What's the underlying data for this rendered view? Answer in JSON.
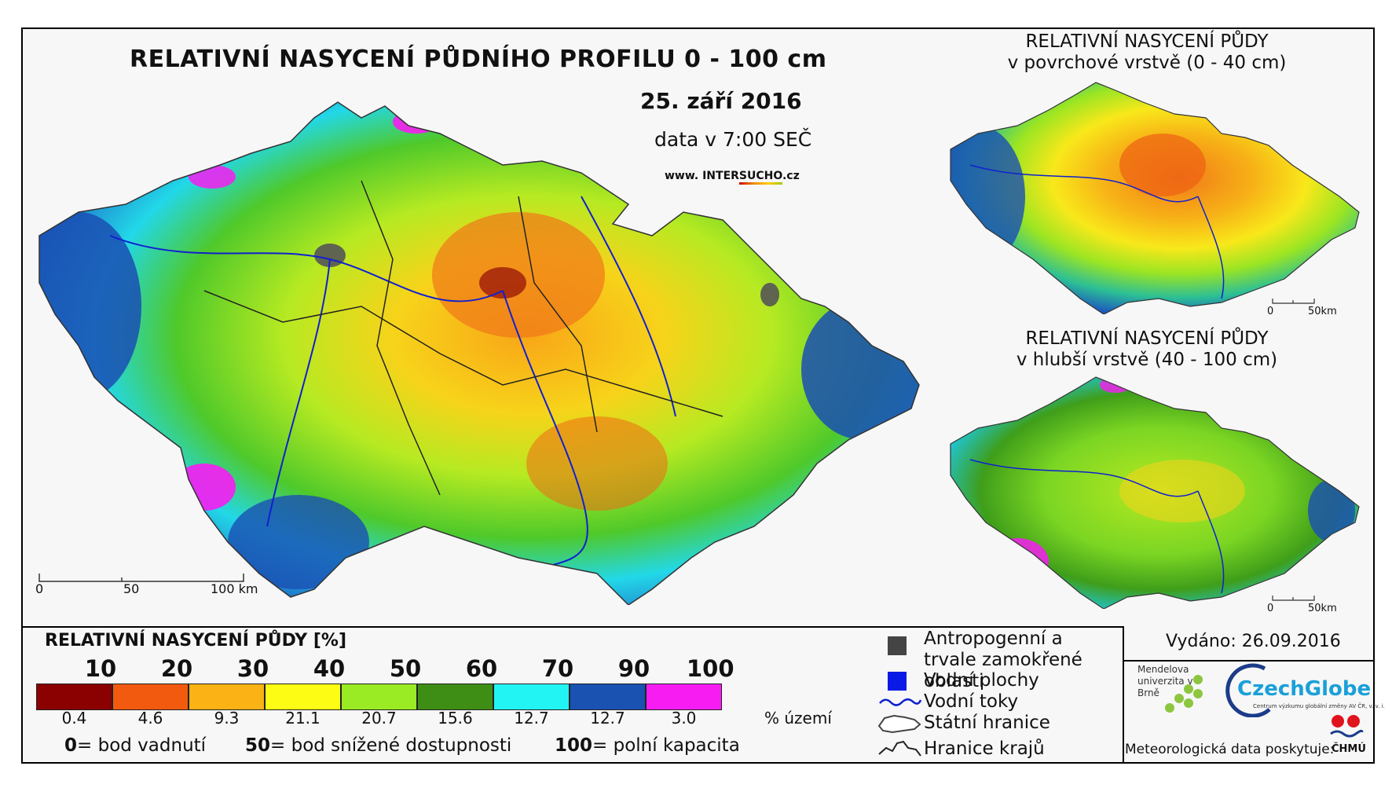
{
  "title": "RELATIVNÍ NASYCENÍ PŮDNÍHO PROFILU 0 - 100 cm",
  "date": "25. září 2016",
  "data_time": "data v 7:00 SEČ",
  "website": {
    "prefix": "www. INTER",
    "accent": "SUCHO",
    "suffix": ".cz"
  },
  "inset_top": {
    "line1": "RELATIVNÍ NASYCENÍ PŮDY",
    "line2": "v povrchové vrstvě (0 - 40 cm)"
  },
  "inset_bottom": {
    "line1": "RELATIVNÍ NASYCENÍ PŮDY",
    "line2": "v hlubší vrstvě (40 - 100 cm)"
  },
  "main_scale": {
    "labels": [
      "0",
      "50",
      "100 km"
    ]
  },
  "inset_scale": {
    "labels": [
      "0",
      "50km"
    ]
  },
  "legend": {
    "title": "RELATIVNÍ NASYCENÍ PŮDY [%]",
    "breaks": [
      "10",
      "20",
      "30",
      "40",
      "50",
      "60",
      "70",
      "90",
      "100"
    ],
    "colors": [
      "#8b0000",
      "#f25a10",
      "#fbb214",
      "#fcfc15",
      "#9aea24",
      "#3e8e15",
      "#22f4f4",
      "#1a52b2",
      "#f71cf2"
    ],
    "percents": [
      "0.4",
      "4.6",
      "9.3",
      "21.1",
      "20.7",
      "15.6",
      "12.7",
      "12.7",
      "3.0"
    ],
    "percent_unit": "% území",
    "definitions": [
      {
        "value": "0",
        "text": "= bod vadnutí"
      },
      {
        "value": "50",
        "text": "= bod snížené dostupnosti"
      },
      {
        "value": "100",
        "text": "= polní kapacita"
      }
    ]
  },
  "map_legend": [
    {
      "icon": "grey-square",
      "label": "Antropogenní a trvale zamokřené oblasti"
    },
    {
      "icon": "blue-square",
      "label": "Vodní plochy"
    },
    {
      "icon": "river-line",
      "label": "Vodní toky"
    },
    {
      "icon": "state-border",
      "label": "Státní hranice"
    },
    {
      "icon": "region-border",
      "label": "Hranice krajů"
    }
  ],
  "issued": "Vydáno: 26.09.2016",
  "logos": {
    "mendel": "Mendelova univerzita v Brně",
    "czechglobe": "CzechGlobe",
    "czechglobe_sub": "Centrum výzkumu globální změny AV ČR, v. v. i.",
    "chmu": "ČHMÚ"
  },
  "meteo_text": "Meteorologická data poskytuje:"
}
